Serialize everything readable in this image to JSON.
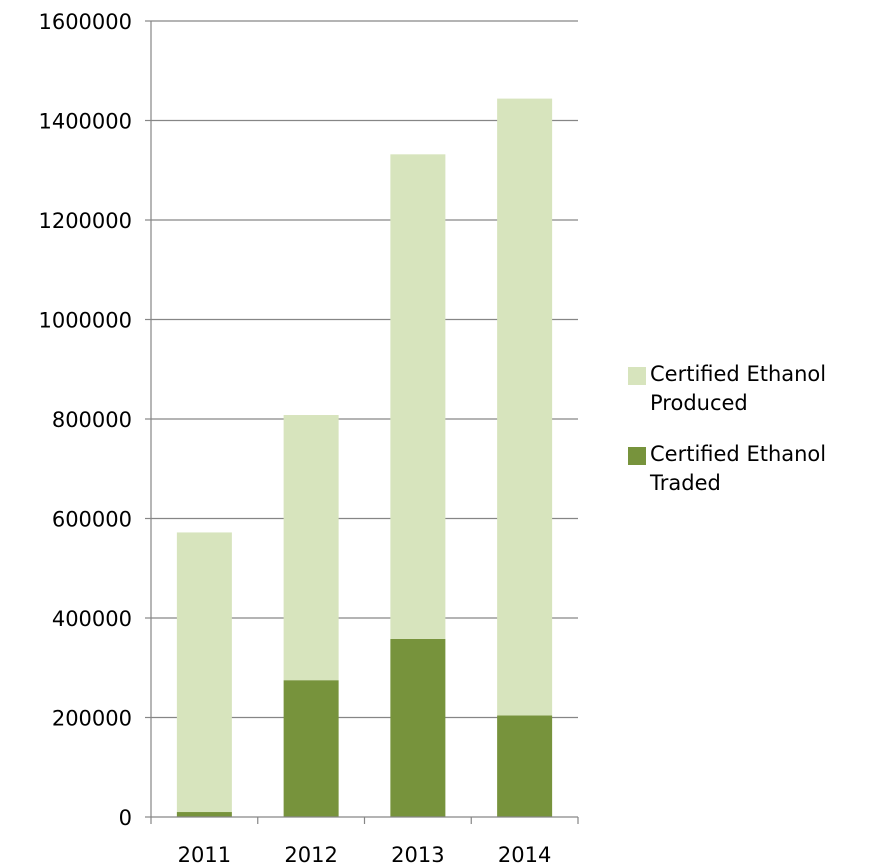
{
  "chart_data": {
    "type": "bar",
    "stacked": true,
    "categories": [
      "2011",
      "2012",
      "2013",
      "2014"
    ],
    "series": [
      {
        "name": "Certified Ethanol Traded",
        "values": [
          10000,
          275000,
          358000,
          204000
        ],
        "color": "#77933c"
      },
      {
        "name": "Certified Ethanol Produced",
        "values": [
          562000,
          533000,
          974000,
          1240000
        ],
        "color": "#d7e4bd"
      }
    ],
    "yticks": [
      "0",
      "200000",
      "400000",
      "600000",
      "800000",
      "1000000",
      "1200000",
      "1400000",
      "1600000"
    ],
    "ylim": [
      0,
      1600000
    ],
    "grid": true,
    "legend_position": "right",
    "title": "",
    "xlabel": "",
    "ylabel": ""
  },
  "legend": {
    "items": [
      {
        "label": "Certified Ethanol Produced",
        "color": "#d7e4bd"
      },
      {
        "label": "Certified Ethanol Traded",
        "color": "#77933c"
      }
    ]
  }
}
